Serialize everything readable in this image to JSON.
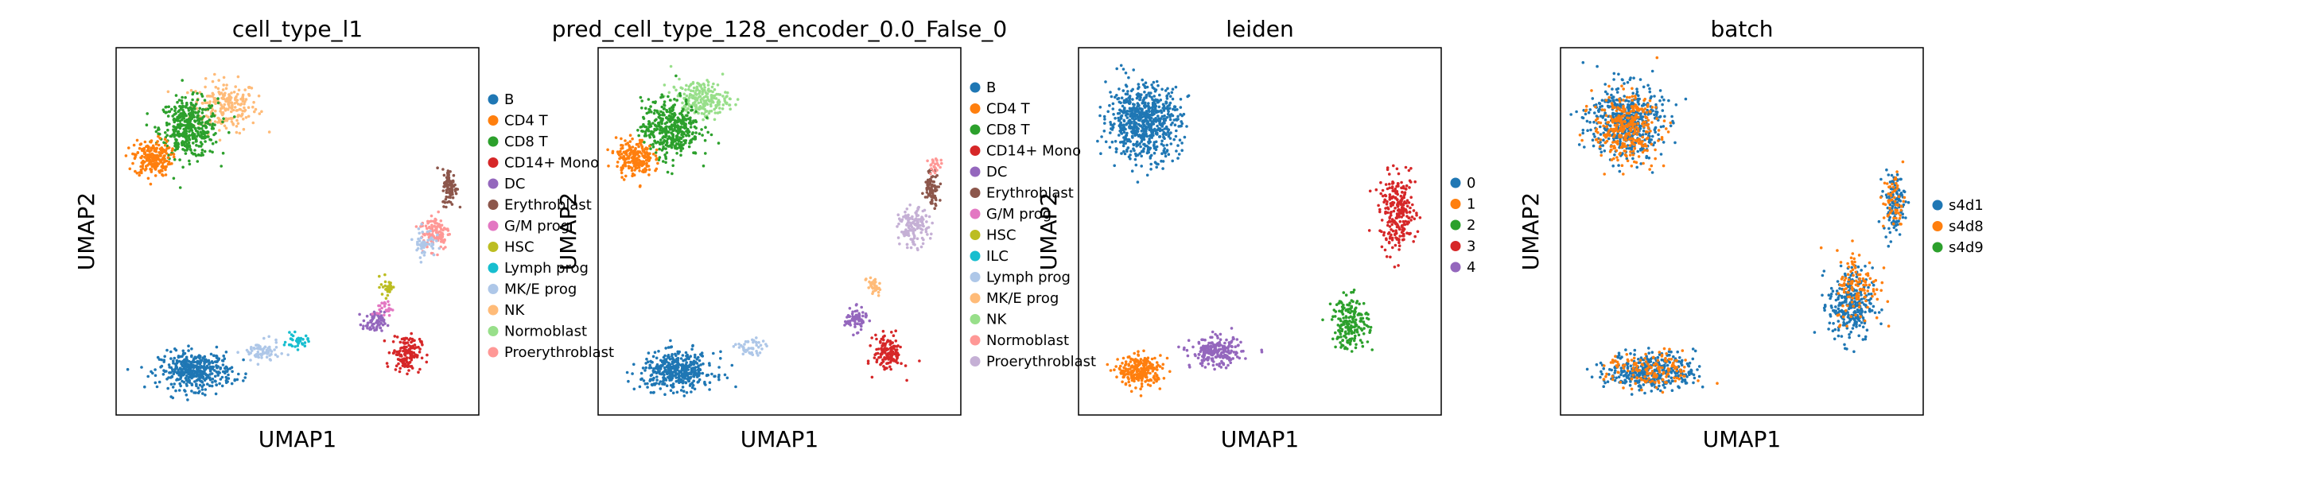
{
  "chart_data": [
    {
      "type": "scatter",
      "title": "cell_type_l1",
      "xlabel": "UMAP1",
      "ylabel": "UMAP2",
      "legend": [
        {
          "label": "B",
          "color": "#1f77b4"
        },
        {
          "label": "CD4 T",
          "color": "#ff7f0e"
        },
        {
          "label": "CD8 T",
          "color": "#2ca02c"
        },
        {
          "label": "CD14+ Mono",
          "color": "#d62728"
        },
        {
          "label": "DC",
          "color": "#9467bd"
        },
        {
          "label": "Erythroblast",
          "color": "#8c564b"
        },
        {
          "label": "G/M prog",
          "color": "#e377c2"
        },
        {
          "label": "HSC",
          "color": "#bcbd22"
        },
        {
          "label": "Lymph prog",
          "color": "#17becf"
        },
        {
          "label": "MK/E prog",
          "color": "#aec7e8"
        },
        {
          "label": "NK",
          "color": "#ffbb78"
        },
        {
          "label": "Normoblast",
          "color": "#98df8a"
        },
        {
          "label": "Proerythroblast",
          "color": "#ff9896"
        }
      ],
      "clusters": [
        {
          "category": "NK",
          "x": 0.3,
          "y": 0.84,
          "spread_x": 0.09,
          "spread_y": 0.07,
          "n": 220
        },
        {
          "category": "CD8 T",
          "x": 0.2,
          "y": 0.78,
          "spread_x": 0.08,
          "spread_y": 0.08,
          "n": 420
        },
        {
          "category": "CD4 T",
          "x": 0.1,
          "y": 0.7,
          "spread_x": 0.05,
          "spread_y": 0.05,
          "n": 220
        },
        {
          "category": "B",
          "x": 0.22,
          "y": 0.12,
          "spread_x": 0.1,
          "spread_y": 0.05,
          "n": 420
        },
        {
          "category": "MK/E prog",
          "x": 0.4,
          "y": 0.17,
          "spread_x": 0.05,
          "spread_y": 0.03,
          "n": 70
        },
        {
          "category": "Lymph prog",
          "x": 0.5,
          "y": 0.2,
          "spread_x": 0.03,
          "spread_y": 0.02,
          "n": 35
        },
        {
          "category": "CD14+ Mono",
          "x": 0.8,
          "y": 0.17,
          "spread_x": 0.04,
          "spread_y": 0.05,
          "n": 140
        },
        {
          "category": "DC",
          "x": 0.71,
          "y": 0.25,
          "spread_x": 0.03,
          "spread_y": 0.03,
          "n": 70
        },
        {
          "category": "HSC",
          "x": 0.75,
          "y": 0.35,
          "spread_x": 0.02,
          "spread_y": 0.03,
          "n": 30
        },
        {
          "category": "G/M prog",
          "x": 0.74,
          "y": 0.29,
          "spread_x": 0.02,
          "spread_y": 0.02,
          "n": 25
        },
        {
          "category": "Proerythroblast",
          "x": 0.88,
          "y": 0.5,
          "spread_x": 0.04,
          "spread_y": 0.05,
          "n": 110
        },
        {
          "category": "Erythroblast",
          "x": 0.92,
          "y": 0.62,
          "spread_x": 0.02,
          "spread_y": 0.05,
          "n": 90
        },
        {
          "category": "MK/E prog",
          "x": 0.85,
          "y": 0.47,
          "spread_x": 0.03,
          "spread_y": 0.04,
          "n": 50
        }
      ]
    },
    {
      "type": "scatter",
      "title": "pred_cell_type_128_encoder_0.0_False_0",
      "xlabel": "UMAP1",
      "ylabel": "UMAP2",
      "legend": [
        {
          "label": "B",
          "color": "#1f77b4"
        },
        {
          "label": "CD4 T",
          "color": "#ff7f0e"
        },
        {
          "label": "CD8 T",
          "color": "#2ca02c"
        },
        {
          "label": "CD14+ Mono",
          "color": "#d62728"
        },
        {
          "label": "DC",
          "color": "#9467bd"
        },
        {
          "label": "Erythroblast",
          "color": "#8c564b"
        },
        {
          "label": "G/M prog",
          "color": "#e377c2"
        },
        {
          "label": "HSC",
          "color": "#bcbd22"
        },
        {
          "label": "ILC",
          "color": "#17becf"
        },
        {
          "label": "Lymph prog",
          "color": "#aec7e8"
        },
        {
          "label": "MK/E prog",
          "color": "#ffbb78"
        },
        {
          "label": "NK",
          "color": "#98df8a"
        },
        {
          "label": "Normoblast",
          "color": "#ff9896"
        },
        {
          "label": "Proerythroblast",
          "color": "#c5b0d5"
        }
      ],
      "clusters": [
        {
          "category": "NK",
          "x": 0.28,
          "y": 0.86,
          "spread_x": 0.08,
          "spread_y": 0.05,
          "n": 220
        },
        {
          "category": "CD8 T",
          "x": 0.2,
          "y": 0.78,
          "spread_x": 0.08,
          "spread_y": 0.08,
          "n": 420
        },
        {
          "category": "CD4 T",
          "x": 0.1,
          "y": 0.7,
          "spread_x": 0.05,
          "spread_y": 0.05,
          "n": 220
        },
        {
          "category": "B",
          "x": 0.22,
          "y": 0.12,
          "spread_x": 0.1,
          "spread_y": 0.05,
          "n": 420
        },
        {
          "category": "Lymph prog",
          "x": 0.42,
          "y": 0.18,
          "spread_x": 0.04,
          "spread_y": 0.03,
          "n": 50
        },
        {
          "category": "CD14+ Mono",
          "x": 0.8,
          "y": 0.17,
          "spread_x": 0.04,
          "spread_y": 0.05,
          "n": 140
        },
        {
          "category": "DC",
          "x": 0.71,
          "y": 0.26,
          "spread_x": 0.03,
          "spread_y": 0.03,
          "n": 70
        },
        {
          "category": "MK/E prog",
          "x": 0.76,
          "y": 0.35,
          "spread_x": 0.02,
          "spread_y": 0.03,
          "n": 35
        },
        {
          "category": "Proerythroblast",
          "x": 0.87,
          "y": 0.51,
          "spread_x": 0.04,
          "spread_y": 0.05,
          "n": 140
        },
        {
          "category": "Erythroblast",
          "x": 0.92,
          "y": 0.62,
          "spread_x": 0.02,
          "spread_y": 0.05,
          "n": 80
        },
        {
          "category": "Normoblast",
          "x": 0.93,
          "y": 0.68,
          "spread_x": 0.02,
          "spread_y": 0.02,
          "n": 25
        }
      ]
    },
    {
      "type": "scatter",
      "title": "leiden",
      "xlabel": "UMAP1",
      "ylabel": "UMAP2",
      "legend": [
        {
          "label": "0",
          "color": "#1f77b4"
        },
        {
          "label": "1",
          "color": "#ff7f0e"
        },
        {
          "label": "2",
          "color": "#2ca02c"
        },
        {
          "label": "3",
          "color": "#d62728"
        },
        {
          "label": "4",
          "color": "#9467bd"
        }
      ],
      "clusters": [
        {
          "category": "0",
          "x": 0.18,
          "y": 0.8,
          "spread_x": 0.1,
          "spread_y": 0.1,
          "n": 700
        },
        {
          "category": "1",
          "x": 0.17,
          "y": 0.12,
          "spread_x": 0.06,
          "spread_y": 0.04,
          "n": 260
        },
        {
          "category": "4",
          "x": 0.38,
          "y": 0.17,
          "spread_x": 0.07,
          "spread_y": 0.04,
          "n": 220
        },
        {
          "category": "2",
          "x": 0.75,
          "y": 0.25,
          "spread_x": 0.05,
          "spread_y": 0.07,
          "n": 200
        },
        {
          "category": "3",
          "x": 0.88,
          "y": 0.55,
          "spread_x": 0.05,
          "spread_y": 0.1,
          "n": 260
        }
      ]
    },
    {
      "type": "scatter",
      "title": "batch",
      "xlabel": "UMAP1",
      "ylabel": "UMAP2",
      "legend": [
        {
          "label": "s4d1",
          "color": "#1f77b4"
        },
        {
          "label": "s4d8",
          "color": "#ff7f0e"
        },
        {
          "label": "s4d9",
          "color": "#2ca02c"
        }
      ],
      "clusters": [
        {
          "category": "s4d1",
          "x": 0.18,
          "y": 0.8,
          "spread_x": 0.1,
          "spread_y": 0.1,
          "n": 500
        },
        {
          "category": "s4d8",
          "x": 0.18,
          "y": 0.78,
          "spread_x": 0.09,
          "spread_y": 0.09,
          "n": 320
        },
        {
          "category": "s4d1",
          "x": 0.25,
          "y": 0.12,
          "spread_x": 0.12,
          "spread_y": 0.05,
          "n": 380
        },
        {
          "category": "s4d8",
          "x": 0.25,
          "y": 0.12,
          "spread_x": 0.12,
          "spread_y": 0.05,
          "n": 150
        },
        {
          "category": "s4d1",
          "x": 0.8,
          "y": 0.3,
          "spread_x": 0.06,
          "spread_y": 0.1,
          "n": 280
        },
        {
          "category": "s4d8",
          "x": 0.82,
          "y": 0.35,
          "spread_x": 0.06,
          "spread_y": 0.1,
          "n": 120
        },
        {
          "category": "s4d1",
          "x": 0.92,
          "y": 0.58,
          "spread_x": 0.03,
          "spread_y": 0.08,
          "n": 120
        },
        {
          "category": "s4d8",
          "x": 0.92,
          "y": 0.58,
          "spread_x": 0.03,
          "spread_y": 0.08,
          "n": 60
        }
      ]
    }
  ]
}
